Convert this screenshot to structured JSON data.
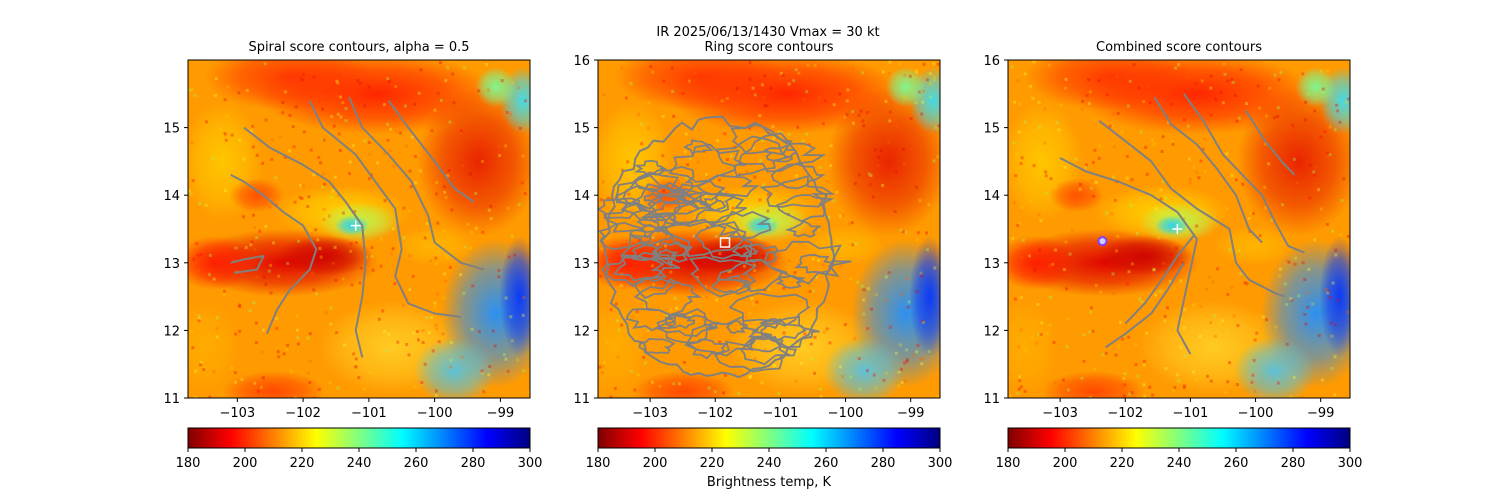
{
  "figure": {
    "suptitle_line1": "IR  2025/06/13/1430    Vmax = 30 kt",
    "colorbar_label": "Brightness temp, K"
  },
  "colormap": {
    "name": "jet_r",
    "stops": [
      "#800000",
      "#ff0000",
      "#ff8000",
      "#ffff00",
      "#80ff80",
      "#00ffff",
      "#0080ff",
      "#0000ff",
      "#000080"
    ]
  },
  "chart_data": [
    {
      "type": "heatmap",
      "panel": "spiral",
      "title": "Spiral score contours, alpha =  0.5",
      "xlim": [
        -103.75,
        -98.55
      ],
      "ylim": [
        11,
        16
      ],
      "xticks": [
        -103,
        -102,
        -101,
        -100,
        -99
      ],
      "xtick_labels": [
        "−103",
        "−102",
        "−101",
        "−100",
        "−99"
      ],
      "yticks": [
        11,
        12,
        13,
        14,
        15
      ],
      "ytick_labels": [
        "11",
        "12",
        "13",
        "14",
        "15"
      ],
      "colorbar": {
        "range": [
          180,
          300
        ],
        "ticks": [
          "180",
          "200",
          "220",
          "240",
          "260",
          "280",
          "300"
        ]
      },
      "contour_color": "#808080",
      "marker": {
        "type": "plus",
        "lon": -101.2,
        "lat": 13.55,
        "color": "#ffffff"
      },
      "contours": [
        [
          [
            -102.9,
            15.0
          ],
          [
            -102.5,
            14.7
          ],
          [
            -102.0,
            14.45
          ],
          [
            -101.6,
            14.2
          ],
          [
            -101.35,
            13.9
          ],
          [
            -101.1,
            13.55
          ],
          [
            -101.05,
            13.0
          ],
          [
            -101.1,
            12.5
          ],
          [
            -101.2,
            12.0
          ],
          [
            -101.1,
            11.6
          ]
        ],
        [
          [
            -101.9,
            15.4
          ],
          [
            -101.7,
            15.0
          ],
          [
            -101.2,
            14.6
          ],
          [
            -100.9,
            14.2
          ],
          [
            -100.6,
            13.8
          ],
          [
            -100.5,
            13.2
          ],
          [
            -100.6,
            12.8
          ],
          [
            -100.4,
            12.4
          ],
          [
            -100.0,
            12.25
          ],
          [
            -99.6,
            12.2
          ]
        ],
        [
          [
            -101.3,
            15.45
          ],
          [
            -101.1,
            15.0
          ],
          [
            -100.7,
            14.6
          ],
          [
            -100.35,
            14.2
          ],
          [
            -100.1,
            13.7
          ],
          [
            -100.0,
            13.3
          ],
          [
            -99.6,
            13.0
          ],
          [
            -99.25,
            12.9
          ]
        ],
        [
          [
            -100.7,
            15.4
          ],
          [
            -100.4,
            15.0
          ],
          [
            -100.0,
            14.5
          ],
          [
            -99.7,
            14.1
          ],
          [
            -99.4,
            13.9
          ]
        ],
        [
          [
            -103.1,
            14.3
          ],
          [
            -102.9,
            14.2
          ],
          [
            -102.6,
            14.0
          ],
          [
            -102.3,
            13.75
          ],
          [
            -102.0,
            13.55
          ],
          [
            -101.8,
            13.2
          ],
          [
            -101.9,
            12.9
          ],
          [
            -102.2,
            12.6
          ],
          [
            -102.4,
            12.3
          ],
          [
            -102.55,
            11.95
          ]
        ],
        [
          [
            -103.1,
            13.0
          ],
          [
            -102.9,
            13.05
          ],
          [
            -102.6,
            13.1
          ],
          [
            -102.7,
            12.9
          ],
          [
            -103.05,
            12.85
          ]
        ]
      ]
    },
    {
      "type": "heatmap",
      "panel": "ring",
      "title": "Ring score contours",
      "xlim": [
        -103.8,
        -98.55
      ],
      "ylim": [
        11,
        16
      ],
      "xticks": [
        -103,
        -102,
        -101,
        -100,
        -99
      ],
      "xtick_labels": [
        "−103",
        "−102",
        "−101",
        "−100",
        "−99"
      ],
      "yticks": [
        11,
        12,
        13,
        14,
        15,
        16
      ],
      "ytick_labels": [
        "11",
        "12",
        "13",
        "14",
        "15",
        "16"
      ],
      "colorbar": {
        "range": [
          180,
          300
        ],
        "ticks": [
          "180",
          "200",
          "220",
          "240",
          "260",
          "280",
          "300"
        ]
      },
      "contour_color": "#808080",
      "marker": {
        "type": "square",
        "lon": -101.85,
        "lat": 13.3,
        "color": "#ffffff"
      },
      "contour_region": {
        "lon": -101.95,
        "lat": 13.2,
        "radius_lon": 1.75,
        "radius_lat": 1.9
      },
      "contours": []
    },
    {
      "type": "heatmap",
      "panel": "combined",
      "title": "Combined score contours",
      "xlim": [
        -103.8,
        -98.55
      ],
      "ylim": [
        11,
        16
      ],
      "xticks": [
        -103,
        -102,
        -101,
        -100,
        -99
      ],
      "xtick_labels": [
        "−103",
        "−102",
        "−101",
        "−100",
        "−99"
      ],
      "yticks": [
        11,
        12,
        13,
        14,
        15,
        16
      ],
      "ytick_labels": [
        "11",
        "12",
        "13",
        "14",
        "15",
        "16"
      ],
      "colorbar": {
        "range": [
          180,
          300
        ],
        "ticks": [
          "180",
          "200",
          "220",
          "240",
          "260",
          "280",
          "300"
        ]
      },
      "contour_color": "#808080",
      "marker": {
        "type": "circle",
        "lon": -102.35,
        "lat": 13.32,
        "color": "#8040ff"
      },
      "marker2": {
        "type": "plus",
        "lon": -101.2,
        "lat": 13.5,
        "color": "#ffffff"
      },
      "contours": [
        [
          [
            -103.0,
            14.55
          ],
          [
            -102.6,
            14.35
          ],
          [
            -102.1,
            14.2
          ],
          [
            -101.6,
            14.0
          ],
          [
            -101.2,
            13.75
          ],
          [
            -100.9,
            13.35
          ],
          [
            -101.0,
            12.9
          ],
          [
            -101.1,
            12.45
          ],
          [
            -101.2,
            12.0
          ],
          [
            -101.0,
            11.65
          ]
        ],
        [
          [
            -102.4,
            15.1
          ],
          [
            -102.0,
            14.8
          ],
          [
            -101.6,
            14.5
          ],
          [
            -101.3,
            14.1
          ],
          [
            -100.9,
            13.8
          ],
          [
            -100.4,
            13.5
          ],
          [
            -100.3,
            13.0
          ],
          [
            -100.1,
            12.75
          ],
          [
            -99.7,
            12.55
          ],
          [
            -99.55,
            12.5
          ]
        ],
        [
          [
            -101.1,
            15.5
          ],
          [
            -100.8,
            15.1
          ],
          [
            -100.5,
            14.6
          ],
          [
            -100.2,
            14.3
          ],
          [
            -99.9,
            14.0
          ],
          [
            -99.7,
            13.6
          ],
          [
            -99.5,
            13.25
          ],
          [
            -99.25,
            13.15
          ]
        ],
        [
          [
            -101.55,
            15.45
          ],
          [
            -101.3,
            15.05
          ],
          [
            -100.9,
            14.75
          ],
          [
            -100.6,
            14.4
          ],
          [
            -100.3,
            14.0
          ],
          [
            -100.1,
            13.5
          ],
          [
            -99.9,
            13.3
          ]
        ],
        [
          [
            -100.15,
            15.25
          ],
          [
            -99.85,
            14.8
          ],
          [
            -99.6,
            14.5
          ],
          [
            -99.4,
            14.3
          ]
        ],
        [
          [
            -102.0,
            12.1
          ],
          [
            -101.7,
            12.4
          ],
          [
            -101.4,
            12.8
          ],
          [
            -101.2,
            13.1
          ],
          [
            -100.95,
            13.4
          ]
        ],
        [
          [
            -102.3,
            11.75
          ],
          [
            -102.0,
            11.95
          ],
          [
            -101.6,
            12.25
          ],
          [
            -101.35,
            12.6
          ],
          [
            -101.1,
            13.0
          ]
        ]
      ]
    }
  ]
}
